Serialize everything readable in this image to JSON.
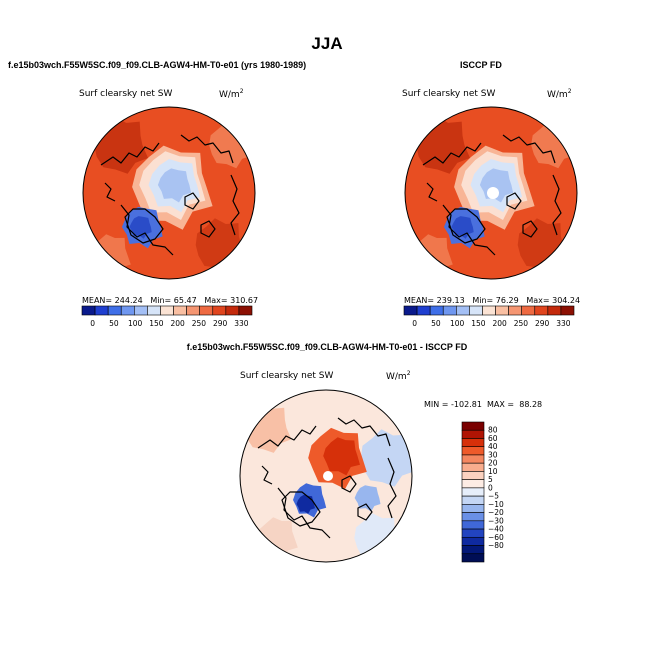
{
  "page_title": "JJA",
  "top_left_case": "f.e15b03wch.F55W5SC.f09_f09.CLB-AGW4-HM-T0-e01 (yrs 1980-1989)",
  "top_right_case": "ISCCP FD",
  "diff_case": "f.e15b03wch.F55W5SC.f09_f09.CLB-AGW4-HM-T0-e01 - ISCCP FD",
  "colors": {
    "abs_scale": [
      "#0a1a8c",
      "#1f3fd0",
      "#3f6fe8",
      "#6f97f0",
      "#a3bff5",
      "#d6e4f8",
      "#fbe3d4",
      "#f9bfa2",
      "#f59672",
      "#ee6a42",
      "#e0451e",
      "#c42a0c",
      "#8c1003"
    ],
    "diff_scale": [
      "#7a0000",
      "#b01404",
      "#d6300a",
      "#ee5a2a",
      "#f48760",
      "#f8ad8e",
      "#fbd2c0",
      "#fdece4",
      "#e6eefa",
      "#c4d6f4",
      "#98b6ee",
      "#6a90e6",
      "#4068d8",
      "#2244c0",
      "#0f2aa0",
      "#031878",
      "#000e55"
    ]
  },
  "chart_data": [
    {
      "type": "heatmap",
      "projection": "polar-stereographic (north pole)",
      "title": "Surf clearsky net SW",
      "units": "W/m",
      "units_exp": "2",
      "stats": {
        "mean": "244.24",
        "min": "65.47",
        "max": "310.67"
      },
      "stats_labels": {
        "mean": "MEAN=",
        "min": "Min=",
        "max": "Max="
      },
      "colorbar_ticks": [
        "0",
        "50",
        "100",
        "150",
        "200",
        "250",
        "290",
        "330"
      ]
    },
    {
      "type": "heatmap",
      "projection": "polar-stereographic (north pole)",
      "title": "Surf clearsky net SW",
      "units": "W/m",
      "units_exp": "2",
      "stats": {
        "mean": "239.13",
        "min": "76.29",
        "max": "304.24"
      },
      "stats_labels": {
        "mean": "MEAN=",
        "min": "Min=",
        "max": "Max="
      },
      "colorbar_ticks": [
        "0",
        "50",
        "100",
        "150",
        "200",
        "250",
        "290",
        "330"
      ]
    },
    {
      "type": "heatmap",
      "projection": "polar-stereographic (north pole)",
      "title": "Surf clearsky net SW",
      "units": "W/m",
      "units_exp": "2",
      "stats": {
        "min": "-102.81",
        "max": "88.28"
      },
      "stats_labels": {
        "min": "MIN =",
        "max": "MAX ="
      },
      "colorbar_ticks": [
        "80",
        "60",
        "40",
        "30",
        "20",
        "10",
        "5",
        "0",
        "−5",
        "−10",
        "−20",
        "−30",
        "−40",
        "−60",
        "−80"
      ]
    }
  ]
}
